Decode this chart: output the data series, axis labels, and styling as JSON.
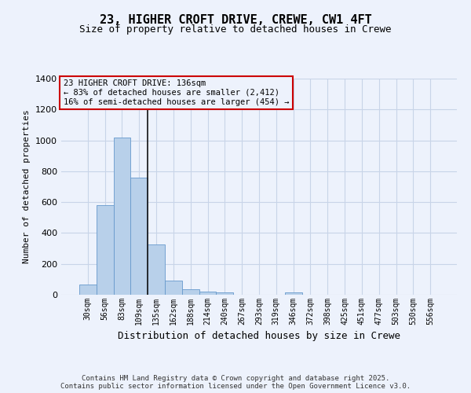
{
  "title": "23, HIGHER CROFT DRIVE, CREWE, CW1 4FT",
  "subtitle": "Size of property relative to detached houses in Crewe",
  "xlabel": "Distribution of detached houses by size in Crewe",
  "ylabel": "Number of detached properties",
  "categories": [
    "30sqm",
    "56sqm",
    "83sqm",
    "109sqm",
    "135sqm",
    "162sqm",
    "188sqm",
    "214sqm",
    "240sqm",
    "267sqm",
    "293sqm",
    "319sqm",
    "346sqm",
    "372sqm",
    "398sqm",
    "425sqm",
    "451sqm",
    "477sqm",
    "503sqm",
    "530sqm",
    "556sqm"
  ],
  "values": [
    65,
    580,
    1020,
    760,
    325,
    90,
    38,
    22,
    14,
    0,
    0,
    0,
    14,
    0,
    0,
    0,
    0,
    0,
    0,
    0,
    0
  ],
  "bar_color": "#b8d0ea",
  "bar_edge_color": "#6699cc",
  "vline_index": 4,
  "vline_color": "#111111",
  "annotation_line0": "23 HIGHER CROFT DRIVE: 136sqm",
  "annotation_line1": "← 83% of detached houses are smaller (2,412)",
  "annotation_line2": "16% of semi-detached houses are larger (454) →",
  "annotation_box_edgecolor": "#cc0000",
  "ylim": [
    0,
    1400
  ],
  "yticks": [
    0,
    200,
    400,
    600,
    800,
    1000,
    1200,
    1400
  ],
  "grid_color": "#c8d4e8",
  "bg_color": "#edf2fc",
  "footer1": "Contains HM Land Registry data © Crown copyright and database right 2025.",
  "footer2": "Contains public sector information licensed under the Open Government Licence v3.0.",
  "title_fontsize": 11,
  "subtitle_fontsize": 9,
  "tick_fontsize": 7,
  "ylabel_fontsize": 8,
  "xlabel_fontsize": 9,
  "annotation_fontsize": 7.5,
  "footer_fontsize": 6.5
}
